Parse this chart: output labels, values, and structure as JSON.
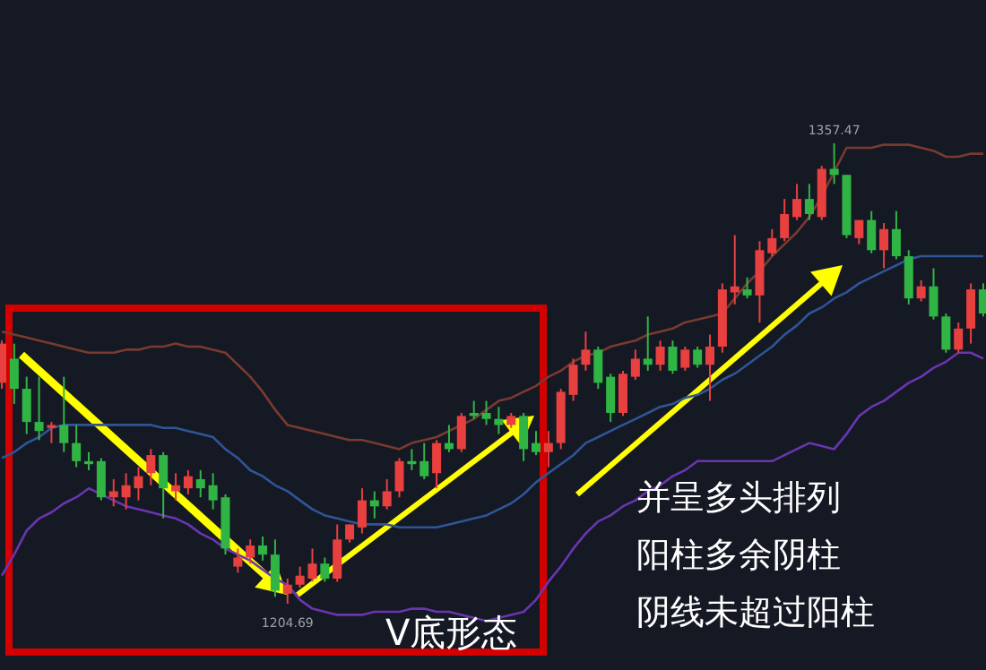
{
  "chart_data": {
    "type": "candlestick",
    "categories": [
      null,
      null,
      null,
      null,
      null,
      null,
      null,
      null,
      null,
      null,
      null,
      null,
      null,
      null,
      null,
      null,
      null,
      null,
      null,
      null,
      null,
      null,
      null,
      null,
      null,
      null,
      null,
      null,
      null,
      null,
      null,
      null,
      null,
      null,
      null,
      null,
      null,
      null,
      null,
      null,
      null,
      null,
      null,
      null,
      null,
      null,
      null,
      null,
      null,
      null,
      null,
      null,
      null,
      null,
      null,
      null,
      null,
      null,
      null,
      null,
      null,
      null,
      null,
      null,
      null,
      null,
      null,
      null,
      null,
      null,
      null,
      null,
      null,
      null,
      null,
      null,
      null,
      null,
      null,
      null
    ],
    "ohlc": [
      [
        1278,
        1292,
        1276,
        1291
      ],
      [
        1286,
        1291,
        1271,
        1276
      ],
      [
        1276,
        1280,
        1261,
        1265
      ],
      [
        1265,
        1280,
        1259,
        1262
      ],
      [
        1263,
        1265,
        1258,
        1264
      ],
      [
        1264,
        1280,
        1255,
        1258
      ],
      [
        1258,
        1264,
        1250,
        1252
      ],
      [
        1252,
        1255,
        1249,
        1251
      ],
      [
        1252,
        1253,
        1239,
        1240
      ],
      [
        1240,
        1246,
        1237,
        1242
      ],
      [
        1240,
        1248,
        1236,
        1244
      ],
      [
        1243,
        1250,
        1239,
        1247
      ],
      [
        1248,
        1256,
        1244,
        1254
      ],
      [
        1254,
        1255,
        1233,
        1243
      ],
      [
        1242,
        1248,
        1239,
        1244
      ],
      [
        1243,
        1249,
        1241,
        1247
      ],
      [
        1246,
        1249,
        1240,
        1243
      ],
      [
        1244,
        1248,
        1236,
        1239
      ],
      [
        1240,
        1241,
        1221,
        1223
      ],
      [
        1217,
        1223,
        1215,
        1220
      ],
      [
        1220,
        1226,
        1218,
        1224
      ],
      [
        1224,
        1227,
        1219,
        1221
      ],
      [
        1221,
        1226,
        1207,
        1209
      ],
      [
        1208,
        1213,
        1204.69,
        1211
      ],
      [
        1211,
        1217,
        1210,
        1214
      ],
      [
        1213,
        1223,
        1212,
        1218
      ],
      [
        1218,
        1220,
        1212,
        1213
      ],
      [
        1213,
        1231,
        1212,
        1226
      ],
      [
        1226,
        1231,
        1225,
        1231
      ],
      [
        1230,
        1243,
        1228,
        1239
      ],
      [
        1239,
        1242,
        1233,
        1237
      ],
      [
        1237,
        1246,
        1236,
        1242
      ],
      [
        1242,
        1253,
        1240,
        1252
      ],
      [
        1252,
        1256,
        1249,
        1251
      ],
      [
        1252,
        1258,
        1246,
        1247
      ],
      [
        1248,
        1259,
        1243,
        1258
      ],
      [
        1258,
        1264,
        1255,
        1256
      ],
      [
        1256,
        1268,
        1255,
        1267
      ],
      [
        1268,
        1272,
        1266,
        1267
      ],
      [
        1268,
        1272,
        1264,
        1266
      ],
      [
        1266,
        1270,
        1261,
        1264
      ],
      [
        1264,
        1268,
        1263,
        1267
      ],
      [
        1267,
        1268,
        1252,
        1256
      ],
      [
        1258,
        1262,
        1254,
        1255
      ],
      [
        1255,
        1262,
        1250,
        1258
      ],
      [
        1258,
        1276,
        1256,
        1275
      ],
      [
        1274,
        1286,
        1272,
        1284
      ],
      [
        1284,
        1295,
        1282,
        1289
      ],
      [
        1289,
        1290,
        1276,
        1278
      ],
      [
        1280,
        1281,
        1265,
        1268
      ],
      [
        1268,
        1282,
        1267,
        1281
      ],
      [
        1280,
        1289,
        1279,
        1286
      ],
      [
        1286,
        1300,
        1282,
        1284
      ],
      [
        1284,
        1292,
        1282,
        1290
      ],
      [
        1290,
        1292,
        1281,
        1282
      ],
      [
        1283,
        1290,
        1282,
        1289
      ],
      [
        1289,
        1290,
        1283,
        1284
      ],
      [
        1284,
        1294,
        1272,
        1290
      ],
      [
        1290,
        1311,
        1288,
        1309
      ],
      [
        1308,
        1327,
        1304,
        1310
      ],
      [
        1309,
        1313,
        1306,
        1307
      ],
      [
        1307,
        1325,
        1298,
        1322
      ],
      [
        1321,
        1329,
        1320,
        1326
      ],
      [
        1326,
        1339,
        1325,
        1334
      ],
      [
        1333,
        1344,
        1332,
        1339
      ],
      [
        1339,
        1344,
        1332,
        1334
      ],
      [
        1333,
        1350,
        1332,
        1349
      ],
      [
        1349,
        1357.47,
        1344,
        1347
      ],
      [
        1347,
        1347,
        1326,
        1327
      ],
      [
        1326,
        1332,
        1324,
        1332
      ],
      [
        1332,
        1335,
        1321,
        1322
      ],
      [
        1322,
        1331,
        1316,
        1329
      ],
      [
        1329,
        1335,
        1319,
        1320
      ],
      [
        1320,
        1322,
        1304,
        1306
      ],
      [
        1306,
        1312,
        1305,
        1310
      ],
      [
        1310,
        1316,
        1299,
        1300
      ],
      [
        1300,
        1301,
        1288,
        1289
      ],
      [
        1289,
        1298,
        1288,
        1296
      ],
      [
        1296,
        1311,
        1291,
        1309
      ],
      [
        1309,
        1311,
        1300,
        1301
      ]
    ],
    "series": [
      {
        "type": "line",
        "color": "#7a3a30",
        "values": [
          1295,
          1294,
          1293,
          1292,
          1291,
          1290,
          1289,
          1288,
          1288,
          1288,
          1289,
          1289,
          1290,
          1290,
          1291,
          1290,
          1290,
          1289,
          1288,
          1284,
          1280,
          1275,
          1269,
          1264,
          1263,
          1262,
          1261,
          1260,
          1259,
          1259,
          1258,
          1257,
          1256,
          1258,
          1259,
          1260,
          1262,
          1264,
          1266,
          1269,
          1272,
          1273,
          1275,
          1277,
          1280,
          1282,
          1285,
          1287,
          1288,
          1290,
          1291,
          1292,
          1294,
          1295,
          1296,
          1298,
          1299,
          1300,
          1301,
          1306,
          1311,
          1315,
          1320,
          1324,
          1328,
          1333,
          1340,
          1348,
          1356,
          1356,
          1356,
          1357,
          1357,
          1357,
          1356,
          1355,
          1353,
          1353,
          1354,
          1354
        ]
      },
      {
        "type": "line",
        "color": "#2f5597",
        "values": [
          1253,
          1255,
          1258,
          1260,
          1263,
          1264,
          1264,
          1264,
          1264,
          1264,
          1264,
          1264,
          1264,
          1263,
          1263,
          1262,
          1261,
          1260,
          1256,
          1253,
          1249,
          1247,
          1244,
          1242,
          1239,
          1236,
          1234,
          1233,
          1232,
          1231,
          1231,
          1231,
          1230,
          1230,
          1230,
          1230,
          1231,
          1232,
          1233,
          1234,
          1236,
          1238,
          1241,
          1245,
          1248,
          1251,
          1254,
          1258,
          1260,
          1262,
          1264,
          1266,
          1268,
          1270,
          1271,
          1273,
          1274,
          1276,
          1279,
          1281,
          1284,
          1287,
          1290,
          1294,
          1297,
          1301,
          1303,
          1306,
          1308,
          1311,
          1313,
          1315,
          1317,
          1319,
          1320,
          1320,
          1320,
          1320,
          1320,
          1320
        ]
      },
      {
        "type": "line",
        "color": "#6a35b0",
        "values": [
          1214,
          1221,
          1229,
          1233,
          1235,
          1238,
          1240,
          1243,
          1241,
          1239,
          1237,
          1236,
          1235,
          1234,
          1233,
          1231,
          1228,
          1226,
          1223,
          1221,
          1219,
          1216,
          1213,
          1211,
          1206,
          1203,
          1202,
          1201,
          1201,
          1201,
          1202,
          1202,
          1202,
          1203,
          1203,
          1202,
          1202,
          1201,
          1200,
          1199,
          1200,
          1201,
          1202,
          1206,
          1212,
          1217,
          1223,
          1228,
          1232,
          1234,
          1237,
          1239,
          1242,
          1244,
          1247,
          1249,
          1252,
          1252,
          1252,
          1252,
          1252,
          1252,
          1252,
          1254,
          1256,
          1258,
          1257,
          1256,
          1261,
          1267,
          1270,
          1272,
          1275,
          1278,
          1280,
          1283,
          1285,
          1288,
          1288,
          1286
        ]
      }
    ],
    "annotations": [
      {
        "text": "1357.47",
        "y": 1357.47
      },
      {
        "text": "1204.69",
        "y": 1204.69
      },
      "V底形态",
      "并呈多头排列",
      "阳柱多余阴柱",
      "阴线未超过阳柱"
    ]
  }
}
